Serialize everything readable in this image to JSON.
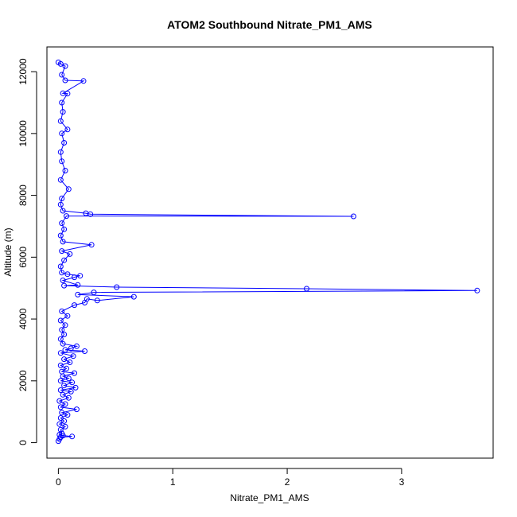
{
  "chart_data": {
    "type": "scatter",
    "title": "ATOM2 Southbound Nitrate_PM1_AMS",
    "xlabel": "Nitrate_PM1_AMS",
    "ylabel": "Altitude (m)",
    "xlim": [
      -0.1,
      3.8
    ],
    "ylim": [
      -500,
      12800
    ],
    "x_ticks": [
      0,
      1,
      2,
      3
    ],
    "y_ticks": [
      0,
      2000,
      4000,
      6000,
      8000,
      10000,
      12000
    ],
    "marker": "open circle",
    "connected_line": true,
    "color": "#0000ff",
    "line_color": "#0000ff",
    "series": [
      {
        "points": [
          [
            0.0,
            50
          ],
          [
            0.01,
            120
          ],
          [
            0.02,
            180
          ],
          [
            0.12,
            200
          ],
          [
            0.04,
            230
          ],
          [
            0.01,
            260
          ],
          [
            0.03,
            300
          ],
          [
            0.02,
            420
          ],
          [
            0.06,
            520
          ],
          [
            0.01,
            600
          ],
          [
            0.05,
            700
          ],
          [
            0.02,
            800
          ],
          [
            0.08,
            900
          ],
          [
            0.03,
            970
          ],
          [
            0.16,
            1080
          ],
          [
            0.02,
            1150
          ],
          [
            0.06,
            1250
          ],
          [
            0.01,
            1350
          ],
          [
            0.09,
            1450
          ],
          [
            0.04,
            1550
          ],
          [
            0.11,
            1650
          ],
          [
            0.02,
            1700
          ],
          [
            0.15,
            1780
          ],
          [
            0.05,
            1850
          ],
          [
            0.12,
            1950
          ],
          [
            0.02,
            2000
          ],
          [
            0.09,
            2080
          ],
          [
            0.04,
            2150
          ],
          [
            0.14,
            2250
          ],
          [
            0.03,
            2300
          ],
          [
            0.07,
            2400
          ],
          [
            0.02,
            2500
          ],
          [
            0.1,
            2600
          ],
          [
            0.05,
            2700
          ],
          [
            0.13,
            2800
          ],
          [
            0.02,
            2900
          ],
          [
            0.23,
            2960
          ],
          [
            0.06,
            3000
          ],
          [
            0.11,
            3050
          ],
          [
            0.16,
            3120
          ],
          [
            0.04,
            3200
          ],
          [
            0.02,
            3350
          ],
          [
            0.05,
            3500
          ],
          [
            0.03,
            3650
          ],
          [
            0.06,
            3800
          ],
          [
            0.02,
            3950
          ],
          [
            0.08,
            4100
          ],
          [
            0.03,
            4250
          ],
          [
            0.14,
            4450
          ],
          [
            0.23,
            4530
          ],
          [
            0.25,
            4650
          ],
          [
            0.34,
            4600
          ],
          [
            0.66,
            4720
          ],
          [
            0.17,
            4790
          ],
          [
            0.31,
            4860
          ],
          [
            3.66,
            4920
          ],
          [
            2.17,
            4980
          ],
          [
            0.51,
            5030
          ],
          [
            0.05,
            5080
          ],
          [
            0.17,
            5100
          ],
          [
            0.04,
            5250
          ],
          [
            0.14,
            5350
          ],
          [
            0.19,
            5400
          ],
          [
            0.08,
            5450
          ],
          [
            0.03,
            5500
          ],
          [
            0.02,
            5700
          ],
          [
            0.05,
            5900
          ],
          [
            0.1,
            6100
          ],
          [
            0.03,
            6200
          ],
          [
            0.29,
            6400
          ],
          [
            0.04,
            6500
          ],
          [
            0.02,
            6700
          ],
          [
            0.05,
            6900
          ],
          [
            0.03,
            7100
          ],
          [
            0.07,
            7330
          ],
          [
            2.58,
            7320
          ],
          [
            0.28,
            7390
          ],
          [
            0.24,
            7420
          ],
          [
            0.04,
            7500
          ],
          [
            0.02,
            7700
          ],
          [
            0.03,
            7900
          ],
          [
            0.09,
            8200
          ],
          [
            0.02,
            8500
          ],
          [
            0.06,
            8800
          ],
          [
            0.03,
            9100
          ],
          [
            0.02,
            9400
          ],
          [
            0.05,
            9700
          ],
          [
            0.03,
            10000
          ],
          [
            0.08,
            10130
          ],
          [
            0.02,
            10400
          ],
          [
            0.04,
            10700
          ],
          [
            0.03,
            11000
          ],
          [
            0.08,
            11290
          ],
          [
            0.04,
            11300
          ],
          [
            0.22,
            11700
          ],
          [
            0.06,
            11720
          ],
          [
            0.03,
            11900
          ],
          [
            0.06,
            12180
          ],
          [
            0.02,
            12250
          ],
          [
            0.0,
            12300
          ]
        ]
      }
    ]
  }
}
